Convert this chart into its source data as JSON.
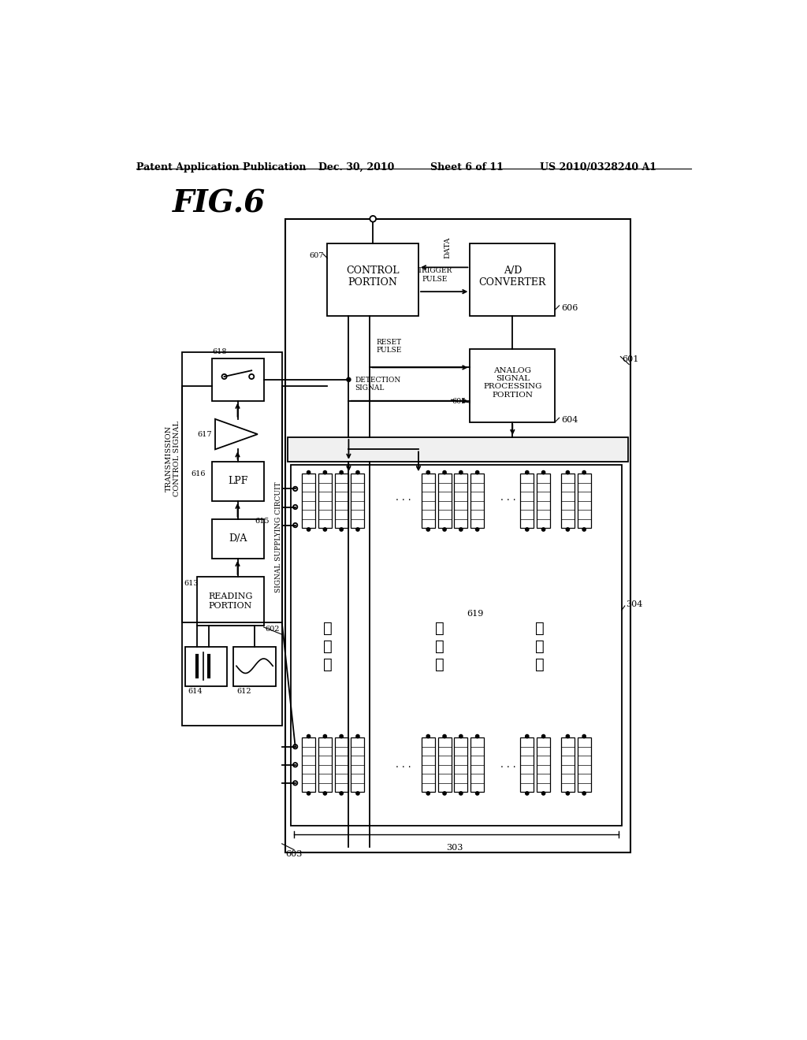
{
  "bg_color": "#ffffff",
  "header_text": "Patent Application Publication",
  "header_date": "Dec. 30, 2010",
  "header_sheet": "Sheet 6 of 11",
  "header_patent": "US 2010/0328240 A1"
}
